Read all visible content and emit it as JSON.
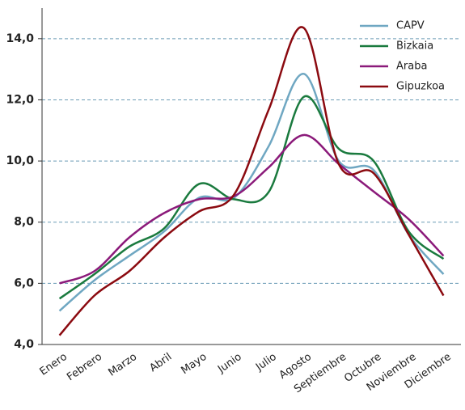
{
  "chart_data": {
    "type": "line",
    "categories": [
      "Enero",
      "Febrero",
      "Marzo",
      "Abril",
      "Mayo",
      "Junio",
      "Julio",
      "Agosto",
      "Septiembre",
      "Octubre",
      "Noviembre",
      "Diciembre"
    ],
    "series": [
      {
        "name": "CAPV",
        "color": "#6fa7c2",
        "values": [
          5.1,
          6.1,
          6.9,
          7.7,
          8.8,
          8.8,
          10.5,
          12.85,
          10.0,
          9.7,
          7.6,
          6.3
        ]
      },
      {
        "name": "Bizkaia",
        "color": "#1a7a3e",
        "values": [
          5.5,
          6.3,
          7.2,
          7.8,
          9.25,
          8.75,
          9.0,
          12.1,
          10.4,
          10.0,
          7.7,
          6.8
        ]
      },
      {
        "name": "Araba",
        "color": "#8b1a7a",
        "values": [
          6.0,
          6.4,
          7.5,
          8.3,
          8.75,
          8.85,
          9.8,
          10.85,
          9.9,
          9.0,
          8.1,
          6.9
        ]
      },
      {
        "name": "Gipuzkoa",
        "color": "#8b0a10",
        "values": [
          4.3,
          5.6,
          6.4,
          7.5,
          8.35,
          8.9,
          11.7,
          14.35,
          9.9,
          9.6,
          7.6,
          5.6
        ]
      }
    ],
    "ylim": [
      4,
      15
    ],
    "yticks": [
      {
        "value": 4,
        "label": "4,0"
      },
      {
        "value": 6,
        "label": "6,0"
      },
      {
        "value": 8,
        "label": "8,0"
      },
      {
        "value": 10,
        "label": "10,0"
      },
      {
        "value": 12,
        "label": "12,0"
      },
      {
        "value": 14,
        "label": "14,0"
      }
    ],
    "grid": true,
    "legend": "top-right"
  }
}
